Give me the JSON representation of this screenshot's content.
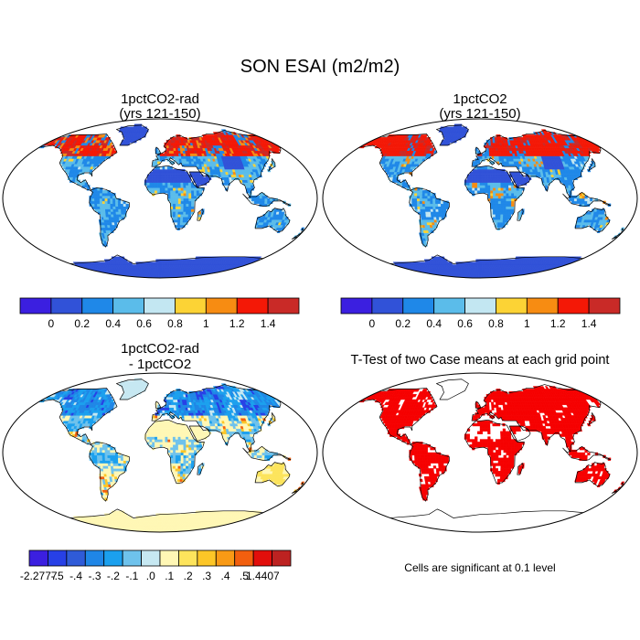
{
  "figure": {
    "title": "SON ESAI (m2/m2)"
  },
  "panels": [
    {
      "id": "rad",
      "title_line1": "1pctCO2-rad",
      "title_line2": "(yrs 121-150)",
      "style": "abs"
    },
    {
      "id": "ctl",
      "title_line1": "1pctCO2",
      "title_line2": "(yrs 121-150)",
      "style": "abs"
    },
    {
      "id": "diff",
      "title_line1": "1pctCO2-rad",
      "title_line2": "- 1pctCO2",
      "style": "diff"
    },
    {
      "id": "ttest",
      "title_line1": "T-Test of two Case means at each grid point",
      "title_line2": "",
      "style": "sig"
    }
  ],
  "colorbars": {
    "abs": {
      "colors": [
        "#3b1fe0",
        "#3152d8",
        "#1f88e8",
        "#5bbcea",
        "#c3e7f2",
        "#fcd335",
        "#f78c12",
        "#f41806",
        "#c92a27"
      ],
      "labels": [
        "0",
        "0.2",
        "0.4",
        "0.6",
        "0.8",
        "1",
        "1.2",
        "1.4"
      ]
    },
    "diff": {
      "colors": [
        "#3b1fe0",
        "#2740e6",
        "#2f5bd8",
        "#1f86e6",
        "#1ba0ee",
        "#6ec2ec",
        "#c6e8f2",
        "#fff7b5",
        "#fde45c",
        "#fcc627",
        "#f99a15",
        "#f25f0e",
        "#e20e0b",
        "#bd2221"
      ],
      "labels": [
        "-2.2777",
        "-.5",
        "-.4",
        "-.3",
        "-.2",
        "-.1",
        ".0",
        ".1",
        ".2",
        ".3",
        ".4",
        ".5",
        "1.4407"
      ]
    }
  },
  "significance_note": "Cells are significant at 0.1 level"
}
